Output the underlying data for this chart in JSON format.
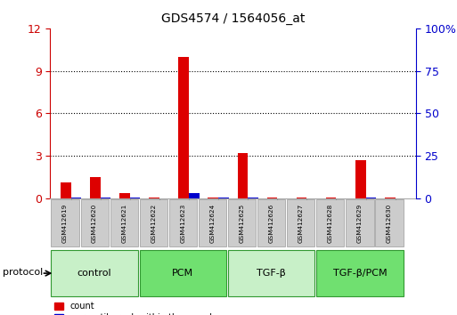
{
  "title": "GDS4574 / 1564056_at",
  "samples": [
    "GSM412619",
    "GSM412620",
    "GSM412621",
    "GSM412622",
    "GSM412623",
    "GSM412624",
    "GSM412625",
    "GSM412626",
    "GSM412627",
    "GSM412628",
    "GSM412629",
    "GSM412630"
  ],
  "count_values": [
    1.1,
    1.5,
    0.4,
    0.05,
    10.0,
    0.05,
    3.2,
    0.05,
    0.05,
    0.05,
    2.7,
    0.05
  ],
  "percentile_values": [
    0.35,
    0.55,
    0.45,
    0.05,
    2.9,
    0.4,
    0.75,
    0.05,
    0.05,
    0.05,
    0.35,
    0.05
  ],
  "groups": [
    {
      "label": "control",
      "start": 0,
      "end": 3,
      "color": "#c8f0c8"
    },
    {
      "label": "PCM",
      "start": 3,
      "end": 6,
      "color": "#70e070"
    },
    {
      "label": "TGF-β",
      "start": 6,
      "end": 9,
      "color": "#c8f0c8"
    },
    {
      "label": "TGF-β/PCM",
      "start": 9,
      "end": 12,
      "color": "#70e070"
    }
  ],
  "ylim_left": [
    0,
    12
  ],
  "ylim_right": [
    0,
    100
  ],
  "yticks_left": [
    0,
    3,
    6,
    9,
    12
  ],
  "yticks_right": [
    0,
    25,
    50,
    75,
    100
  ],
  "bar_width": 0.35,
  "bar_color_red": "#dd0000",
  "bar_color_blue": "#0000cc",
  "bg_color": "#ffffff",
  "left_tick_color": "#cc0000",
  "right_tick_color": "#0000cc"
}
